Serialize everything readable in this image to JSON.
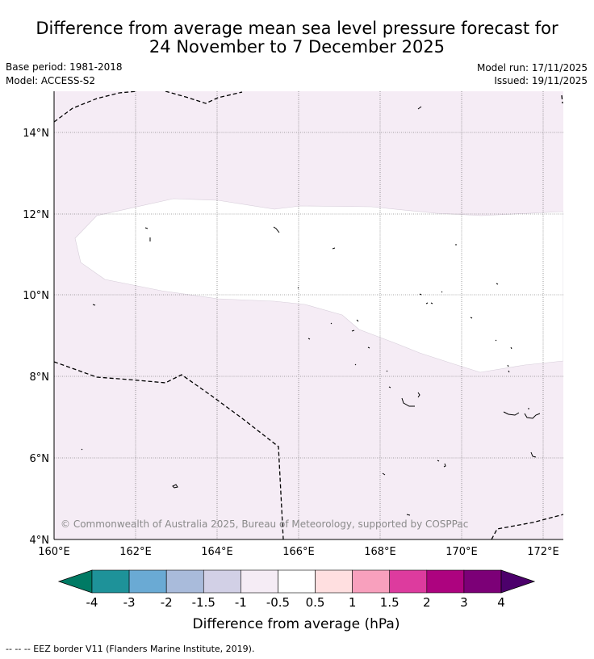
{
  "header": {
    "title_line1": "Difference from average mean sea level pressure forecast for",
    "title_line2": "24 November to 7 December 2025",
    "base_period": "Base period: 1981-2018",
    "model": "Model: ACCESS-S2",
    "model_run": "Model run: 17/11/2025",
    "issued": "Issued: 19/11/2025"
  },
  "map": {
    "lat_labels": [
      "14°N",
      "12°N",
      "10°N",
      "8°N",
      "6°N",
      "4°N"
    ],
    "lon_labels": [
      "160°E",
      "162°E",
      "164°E",
      "166°E",
      "168°E",
      "170°E",
      "172°E"
    ],
    "copyright": "© Commonwealth of Australia 2025, Bureau of Meteorology, supported by COSPPac"
  },
  "legend": {
    "title": "Difference from average (hPa)",
    "tick_labels": [
      "-4",
      "-3",
      "-2",
      "-1.5",
      "-1",
      "-0.5",
      "0.5",
      "1",
      "1.5",
      "2",
      "3",
      "4"
    ],
    "colors": [
      "#007a64",
      "#1e9299",
      "#6aaad4",
      "#a9bbdb",
      "#d2d0e6",
      "#f5ecf5",
      "#ffffff",
      "#ffdfe0",
      "#f8a0bd",
      "#dd3b9e",
      "#ad037f",
      "#7c0077",
      "#4c006b"
    ]
  },
  "footnote": "--  --  -- EEZ border V11 (Flanders Marine Institute, 2019)."
}
